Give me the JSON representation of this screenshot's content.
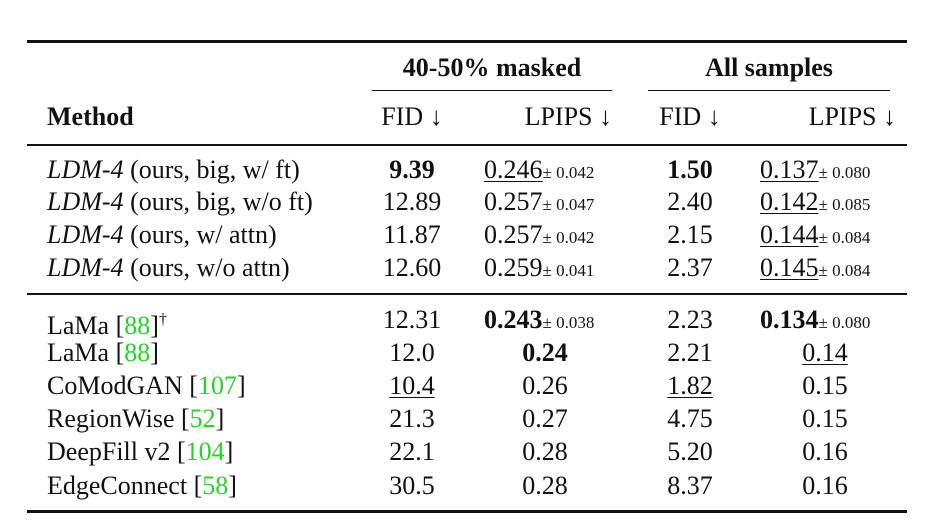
{
  "table": {
    "group_headers": {
      "masked": "40-50% masked",
      "all": "All samples"
    },
    "column_headers": {
      "method": "Method",
      "fid_1": "FID ↓",
      "lpips_1": "LPIPS ↓",
      "fid_2": "FID ↓",
      "lpips_2": "LPIPS ↓"
    },
    "ldm_rows": [
      {
        "name": "LDM-4",
        "variant": " (ours, big, w/ ft)",
        "fid_masked": "9.39",
        "lpips_masked": "0.246",
        "lpips_masked_std": "± 0.042",
        "fid_all": "1.50",
        "lpips_all": "0.137",
        "lpips_all_std": "± 0.080"
      },
      {
        "name": "LDM-4",
        "variant": " (ours, big, w/o ft)",
        "fid_masked": "12.89",
        "lpips_masked": "0.257",
        "lpips_masked_std": "± 0.047",
        "fid_all": "2.40",
        "lpips_all": "0.142",
        "lpips_all_std": "± 0.085"
      },
      {
        "name": "LDM-4",
        "variant": " (ours, w/ attn)",
        "fid_masked": "11.87",
        "lpips_masked": "0.257",
        "lpips_masked_std": "± 0.042",
        "fid_all": "2.15",
        "lpips_all": "0.144",
        "lpips_all_std": "± 0.084"
      },
      {
        "name": "LDM-4",
        "variant": " (ours, w/o attn)",
        "fid_masked": "12.60",
        "lpips_masked": "0.259",
        "lpips_masked_std": "± 0.041",
        "fid_all": "2.37",
        "lpips_all": "0.145",
        "lpips_all_std": "± 0.084"
      }
    ],
    "baseline_rows": [
      {
        "name": "LaMa ",
        "ref": "88",
        "dagger": "†",
        "fid_masked": "12.31",
        "lpips_masked": "0.243",
        "lpips_masked_std": "± 0.038",
        "fid_all": "2.23",
        "lpips_all": "0.134",
        "lpips_all_std": "± 0.080"
      },
      {
        "name": "LaMa ",
        "ref": "88",
        "dagger": "",
        "fid_masked": "12.0",
        "lpips_masked": "0.24",
        "lpips_masked_std": "",
        "fid_all": "2.21",
        "lpips_all": "0.14",
        "lpips_all_std": ""
      },
      {
        "name": "CoModGAN ",
        "ref": "107",
        "dagger": "",
        "fid_masked": "10.4",
        "lpips_masked": "0.26",
        "lpips_masked_std": "",
        "fid_all": "1.82",
        "lpips_all": "0.15",
        "lpips_all_std": ""
      },
      {
        "name": "RegionWise ",
        "ref": "52",
        "dagger": "",
        "fid_masked": "21.3",
        "lpips_masked": "0.27",
        "lpips_masked_std": "",
        "fid_all": "4.75",
        "lpips_all": "0.15",
        "lpips_all_std": ""
      },
      {
        "name": "DeepFill v2 ",
        "ref": "104",
        "dagger": "",
        "fid_masked": "22.1",
        "lpips_masked": "0.28",
        "lpips_masked_std": "",
        "fid_all": "5.20",
        "lpips_all": "0.16",
        "lpips_all_std": ""
      },
      {
        "name": "EdgeConnect ",
        "ref": "58",
        "dagger": "",
        "fid_masked": "30.5",
        "lpips_masked": "0.28",
        "lpips_masked_std": "",
        "fid_all": "8.37",
        "lpips_all": "0.16",
        "lpips_all_std": ""
      }
    ],
    "colors": {
      "text": "#111111",
      "citation": "#1fd81f"
    }
  }
}
